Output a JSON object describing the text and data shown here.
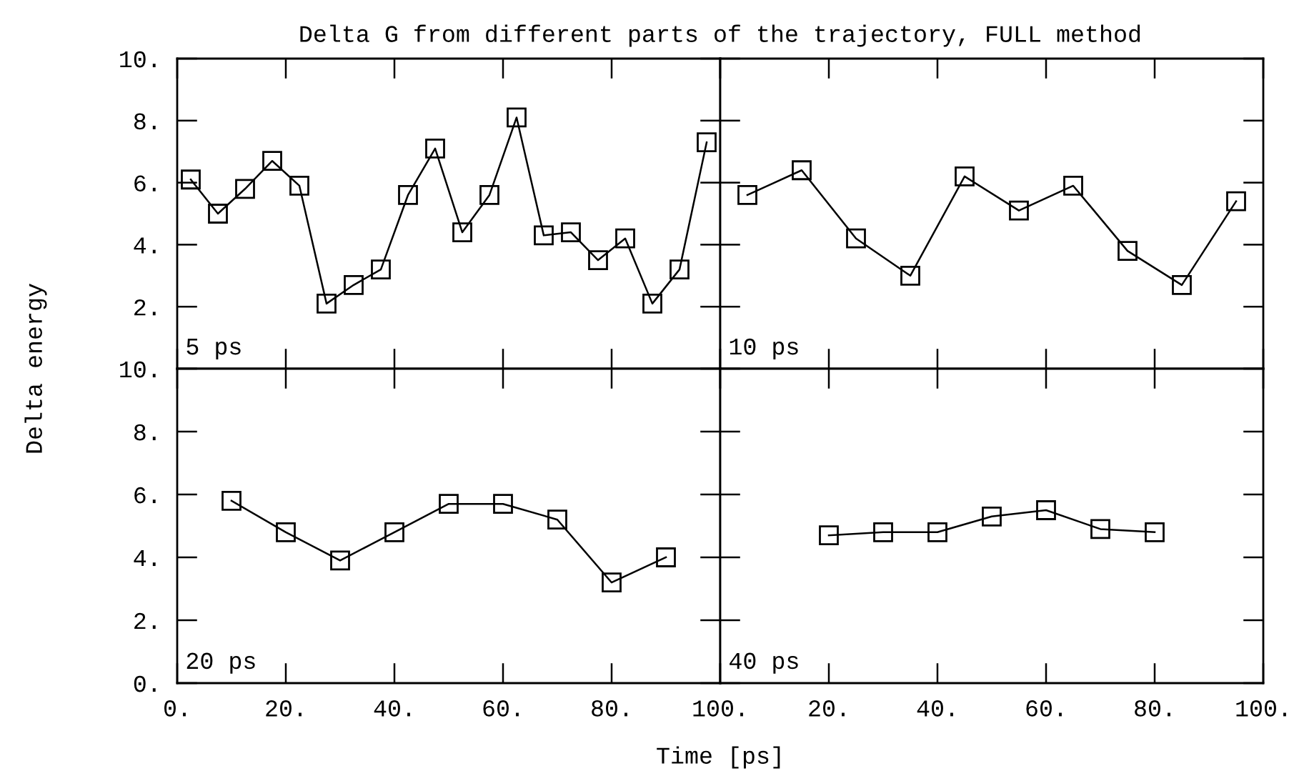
{
  "chart_data": [
    {
      "type": "line",
      "title": "Delta G from different parts of the trajectory, FULL method",
      "ylabel": "Delta energy",
      "annotations": [
        "5 ps"
      ],
      "marker": "square",
      "color": "#000000",
      "tick_labels": "y",
      "x": [
        2.5,
        7.5,
        12.5,
        17.5,
        22.5,
        27.5,
        32.5,
        37.5,
        42.5,
        47.5,
        52.5,
        57.5,
        62.5,
        67.5,
        72.5,
        77.5,
        82.5,
        87.5,
        92.5,
        97.5
      ],
      "values": [
        6.1,
        5.0,
        5.8,
        6.7,
        5.9,
        2.1,
        2.7,
        3.2,
        5.6,
        7.1,
        4.4,
        5.6,
        8.1,
        4.3,
        4.4,
        3.5,
        4.2,
        2.1,
        3.2,
        7.3
      ],
      "xlim": [
        0,
        100
      ],
      "ylim": [
        0,
        10
      ],
      "xticks": [
        {
          "value": 0,
          "label": null
        },
        {
          "value": 20,
          "label": null
        },
        {
          "value": 40,
          "label": null
        },
        {
          "value": 60,
          "label": null
        },
        {
          "value": 80,
          "label": null
        },
        {
          "value": 100,
          "label": null
        }
      ],
      "yticks": [
        {
          "value": 0,
          "label": null
        },
        {
          "value": 2,
          "label": "2."
        },
        {
          "value": 4,
          "label": "4."
        },
        {
          "value": 6,
          "label": "6."
        },
        {
          "value": 8,
          "label": "8."
        },
        {
          "value": 10,
          "label": "10."
        }
      ]
    },
    {
      "type": "line",
      "annotations": [
        "10 ps"
      ],
      "marker": "square",
      "color": "#000000",
      "tick_labels": false,
      "x": [
        5,
        15,
        25,
        35,
        45,
        55,
        65,
        75,
        85,
        95
      ],
      "values": [
        5.6,
        6.4,
        4.2,
        3.0,
        6.2,
        5.1,
        5.9,
        3.8,
        2.7,
        5.4
      ],
      "xlim": [
        0,
        100
      ],
      "ylim": [
        0,
        10
      ],
      "xticks": [
        {
          "value": 0,
          "label": null
        },
        {
          "value": 20,
          "label": null
        },
        {
          "value": 40,
          "label": null
        },
        {
          "value": 60,
          "label": null
        },
        {
          "value": 80,
          "label": null
        },
        {
          "value": 100,
          "label": null
        }
      ],
      "yticks": [
        {
          "value": 0,
          "label": null
        },
        {
          "value": 2,
          "label": null
        },
        {
          "value": 4,
          "label": null
        },
        {
          "value": 6,
          "label": null
        },
        {
          "value": 8,
          "label": null
        },
        {
          "value": 10,
          "label": null
        }
      ]
    },
    {
      "type": "line",
      "xlabel": "Time [ps]",
      "annotations": [
        "20 ps"
      ],
      "marker": "square",
      "color": "#000000",
      "x": [
        10,
        20,
        30,
        40,
        50,
        60,
        70,
        80,
        90
      ],
      "values": [
        5.8,
        4.8,
        3.9,
        4.8,
        5.7,
        5.7,
        5.2,
        3.2,
        4.0
      ],
      "xlim": [
        0,
        100
      ],
      "ylim": [
        0,
        10
      ],
      "xticks": [
        {
          "value": 0,
          "label": "0."
        },
        {
          "value": 20,
          "label": "20."
        },
        {
          "value": 40,
          "label": "40."
        },
        {
          "value": 60,
          "label": "60."
        },
        {
          "value": 80,
          "label": "80."
        },
        {
          "value": 100,
          "label": "100."
        }
      ],
      "yticks": [
        {
          "value": 0,
          "label": "0."
        },
        {
          "value": 2,
          "label": "2."
        },
        {
          "value": 4,
          "label": "4."
        },
        {
          "value": 6,
          "label": "6."
        },
        {
          "value": 8,
          "label": "8."
        },
        {
          "value": 10,
          "label": "10."
        }
      ]
    },
    {
      "type": "line",
      "annotations": [
        "40 ps"
      ],
      "marker": "square",
      "color": "#000000",
      "tick_labels": "x",
      "x": [
        20,
        30,
        40,
        50,
        60,
        70,
        80
      ],
      "values": [
        4.7,
        4.8,
        4.8,
        5.3,
        5.5,
        4.9,
        4.8
      ],
      "xlim": [
        0,
        100
      ],
      "ylim": [
        0,
        10
      ],
      "xticks": [
        {
          "value": 0,
          "label": null
        },
        {
          "value": 20,
          "label": "20."
        },
        {
          "value": 40,
          "label": "40."
        },
        {
          "value": 60,
          "label": "60."
        },
        {
          "value": 80,
          "label": "80."
        },
        {
          "value": 100,
          "label": "100."
        }
      ],
      "yticks": [
        {
          "value": 0,
          "label": null
        },
        {
          "value": 2,
          "label": null
        },
        {
          "value": 4,
          "label": null
        },
        {
          "value": 6,
          "label": null
        },
        {
          "value": 8,
          "label": null
        },
        {
          "value": 10,
          "label": null
        }
      ]
    }
  ]
}
